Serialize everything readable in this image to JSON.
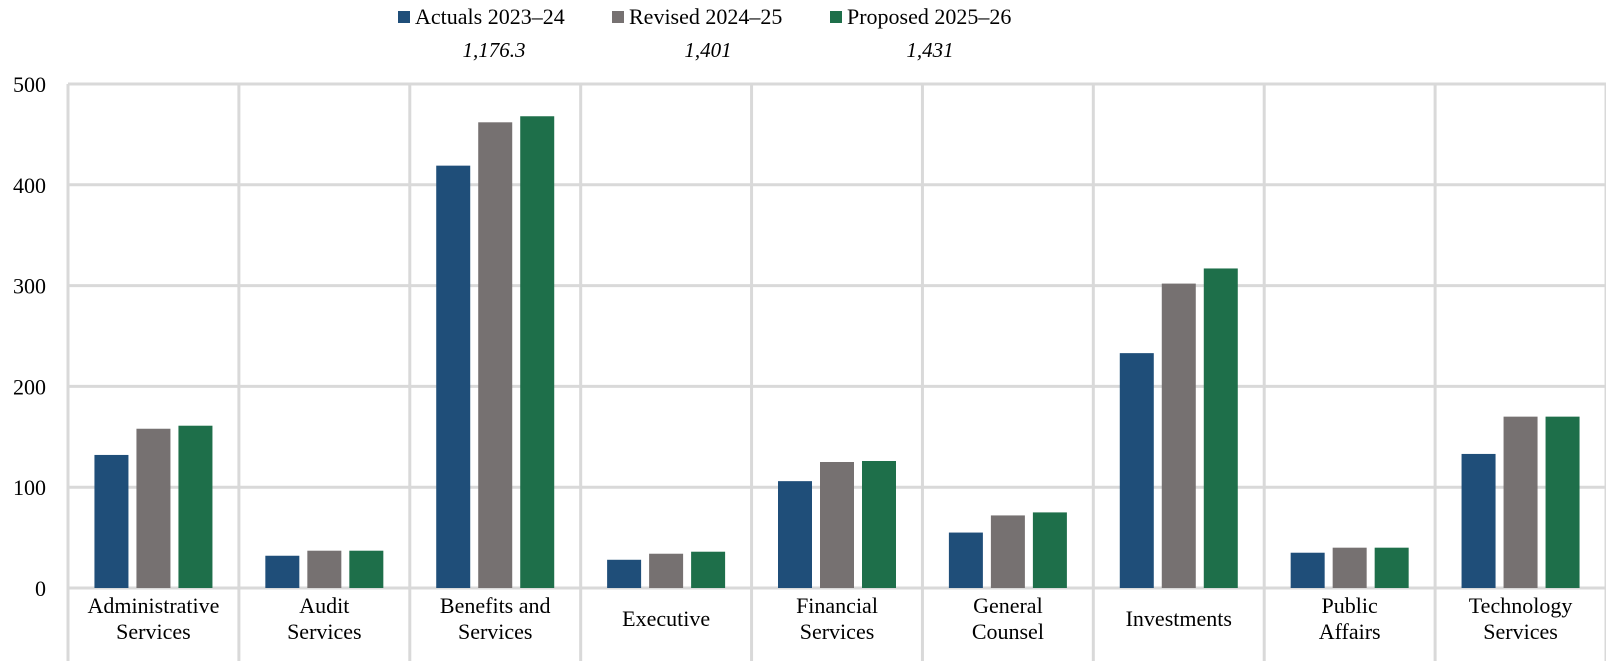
{
  "chart_data": {
    "type": "bar",
    "categories": [
      [
        "Administrative",
        "Services"
      ],
      [
        "Audit",
        "Services"
      ],
      [
        "Benefits and",
        "Services"
      ],
      [
        "Executive"
      ],
      [
        "Financial",
        "Services"
      ],
      [
        "General",
        "Counsel"
      ],
      [
        "Investments"
      ],
      [
        "Public",
        "Affairs"
      ],
      [
        "Technology",
        "Services"
      ]
    ],
    "series": [
      {
        "name": "Actuals 2023–24",
        "color": "#1f4e79",
        "total": "1,176.3",
        "values": [
          132,
          32,
          419,
          28,
          106,
          55,
          233,
          35,
          133
        ]
      },
      {
        "name": "Revised 2024–25",
        "color": "#767171",
        "total": "1,401",
        "values": [
          158,
          37,
          462,
          34,
          125,
          72,
          302,
          40,
          170
        ]
      },
      {
        "name": "Proposed 2025–26",
        "color": "#1e6f4a",
        "total": "1,431",
        "values": [
          161,
          37,
          468,
          36,
          126,
          75,
          317,
          40,
          170
        ]
      }
    ],
    "yticks": [
      0,
      100,
      200,
      300,
      400,
      500
    ],
    "ylim": [
      0,
      500
    ],
    "grid": true,
    "legend_position": "top"
  }
}
